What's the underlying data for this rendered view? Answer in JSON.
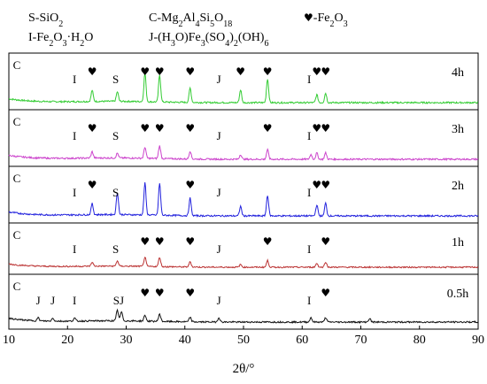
{
  "chart_data": {
    "type": "line",
    "xlabel": "2θ/°",
    "ylabel": "",
    "xlim": [
      10,
      90
    ],
    "x_ticks": [
      10,
      20,
      30,
      40,
      50,
      60,
      70,
      80,
      90
    ],
    "grid": false,
    "legend_items": [
      {
        "sym": "S",
        "sep": "-",
        "formula": [
          "Si",
          "O",
          "2"
        ]
      },
      {
        "sym": "C",
        "sep": "-",
        "formula": [
          "Mg",
          "2",
          "Al",
          "4",
          "Si",
          "5",
          "O",
          "18"
        ]
      },
      {
        "sym": "♥",
        "sep": "-",
        "formula": [
          "Fe",
          "2",
          "O",
          "3"
        ]
      },
      {
        "sym": "I",
        "sep": "-",
        "formula": [
          "Fe",
          "2",
          "O",
          "3",
          "·H",
          "2",
          "O"
        ]
      },
      {
        "sym": "J",
        "sep": "-",
        "formula": [
          "(H",
          "3",
          "O)Fe",
          "3",
          "(SO",
          "4",
          ")",
          "2",
          "(OH)",
          "6"
        ]
      }
    ],
    "series": [
      {
        "name": "4h",
        "color": "#33cc33",
        "peaks": [
          [
            24.2,
            0.35
          ],
          [
            28.5,
            0.3
          ],
          [
            33.2,
            0.9
          ],
          [
            35.7,
            0.85
          ],
          [
            40.9,
            0.45
          ],
          [
            49.5,
            0.4
          ],
          [
            54.1,
            0.75
          ],
          [
            62.5,
            0.25
          ],
          [
            64.0,
            0.3
          ]
        ],
        "labels": [
          {
            "text": "C",
            "x": 10.5
          },
          {
            "text": "I",
            "x": 21.2
          },
          {
            "text": "♥",
            "x": 24.2
          },
          {
            "text": "S",
            "x": 28.2
          },
          {
            "text": "♥",
            "x": 33.2
          },
          {
            "text": "♥",
            "x": 35.7
          },
          {
            "text": "♥",
            "x": 40.9
          },
          {
            "text": "J",
            "x": 45.8
          },
          {
            "text": "♥",
            "x": 49.5
          },
          {
            "text": "♥",
            "x": 54.1
          },
          {
            "text": "I",
            "x": 61.2
          },
          {
            "text": "♥",
            "x": 62.5
          },
          {
            "text": "♥",
            "x": 64.0
          }
        ]
      },
      {
        "name": "3h",
        "color": "#cc44cc",
        "peaks": [
          [
            24.2,
            0.2
          ],
          [
            28.5,
            0.15
          ],
          [
            33.2,
            0.35
          ],
          [
            35.7,
            0.4
          ],
          [
            40.9,
            0.25
          ],
          [
            49.5,
            0.15
          ],
          [
            54.1,
            0.3
          ],
          [
            61.5,
            0.15
          ],
          [
            62.5,
            0.2
          ],
          [
            64.0,
            0.2
          ]
        ],
        "labels": [
          {
            "text": "C",
            "x": 10.5
          },
          {
            "text": "I",
            "x": 21.2
          },
          {
            "text": "♥",
            "x": 24.2
          },
          {
            "text": "S",
            "x": 28.2
          },
          {
            "text": "♥",
            "x": 33.2
          },
          {
            "text": "♥",
            "x": 35.7
          },
          {
            "text": "♥",
            "x": 40.9
          },
          {
            "text": "J",
            "x": 45.8
          },
          {
            "text": "♥",
            "x": 54.1
          },
          {
            "text": "I",
            "x": 61.2
          },
          {
            "text": "♥",
            "x": 62.5
          },
          {
            "text": "♥",
            "x": 64.0
          }
        ]
      },
      {
        "name": "2h",
        "color": "#2222dd",
        "peaks": [
          [
            24.2,
            0.35
          ],
          [
            28.5,
            0.7
          ],
          [
            33.2,
            1.0
          ],
          [
            35.7,
            1.0
          ],
          [
            40.9,
            0.55
          ],
          [
            49.5,
            0.3
          ],
          [
            54.1,
            0.65
          ],
          [
            62.5,
            0.35
          ],
          [
            64.0,
            0.4
          ]
        ],
        "labels": [
          {
            "text": "C",
            "x": 10.5
          },
          {
            "text": "I",
            "x": 21.2
          },
          {
            "text": "♥",
            "x": 24.2
          },
          {
            "text": "S",
            "x": 28.2
          },
          {
            "text": "♥",
            "x": 40.9
          },
          {
            "text": "J",
            "x": 45.8
          },
          {
            "text": "I",
            "x": 61.2
          },
          {
            "text": "♥",
            "x": 62.5
          },
          {
            "text": "♥",
            "x": 64.0
          }
        ]
      },
      {
        "name": "1h",
        "color": "#bb3333",
        "peaks": [
          [
            24.2,
            0.15
          ],
          [
            28.5,
            0.2
          ],
          [
            33.2,
            0.35
          ],
          [
            35.7,
            0.35
          ],
          [
            40.9,
            0.2
          ],
          [
            49.5,
            0.1
          ],
          [
            54.1,
            0.25
          ],
          [
            62.5,
            0.15
          ],
          [
            64.0,
            0.2
          ]
        ],
        "labels": [
          {
            "text": "C",
            "x": 10.5
          },
          {
            "text": "I",
            "x": 21.2
          },
          {
            "text": "S",
            "x": 28.2
          },
          {
            "text": "♥",
            "x": 33.2
          },
          {
            "text": "♥",
            "x": 35.7
          },
          {
            "text": "♥",
            "x": 40.9
          },
          {
            "text": "J",
            "x": 45.8
          },
          {
            "text": "♥",
            "x": 54.1
          },
          {
            "text": "I",
            "x": 61.2
          },
          {
            "text": "♥",
            "x": 64.0
          }
        ]
      },
      {
        "name": "0.5h",
        "color": "#111111",
        "peaks": [
          [
            15.0,
            0.1
          ],
          [
            17.5,
            0.1
          ],
          [
            21.2,
            0.1
          ],
          [
            28.5,
            0.35
          ],
          [
            29.2,
            0.3
          ],
          [
            33.2,
            0.2
          ],
          [
            35.7,
            0.25
          ],
          [
            40.9,
            0.15
          ],
          [
            45.8,
            0.15
          ],
          [
            61.5,
            0.15
          ],
          [
            64.0,
            0.15
          ],
          [
            71.5,
            0.12
          ]
        ],
        "labels": [
          {
            "text": "C",
            "x": 10.5
          },
          {
            "text": "J",
            "x": 15.0
          },
          {
            "text": "J",
            "x": 17.5
          },
          {
            "text": "I",
            "x": 21.2
          },
          {
            "text": "SJ",
            "x": 28.7
          },
          {
            "text": "♥",
            "x": 33.2
          },
          {
            "text": "♥",
            "x": 35.7
          },
          {
            "text": "♥",
            "x": 40.9
          },
          {
            "text": "J",
            "x": 45.8
          },
          {
            "text": "I",
            "x": 61.2
          },
          {
            "text": "♥",
            "x": 64.0
          }
        ]
      }
    ]
  }
}
